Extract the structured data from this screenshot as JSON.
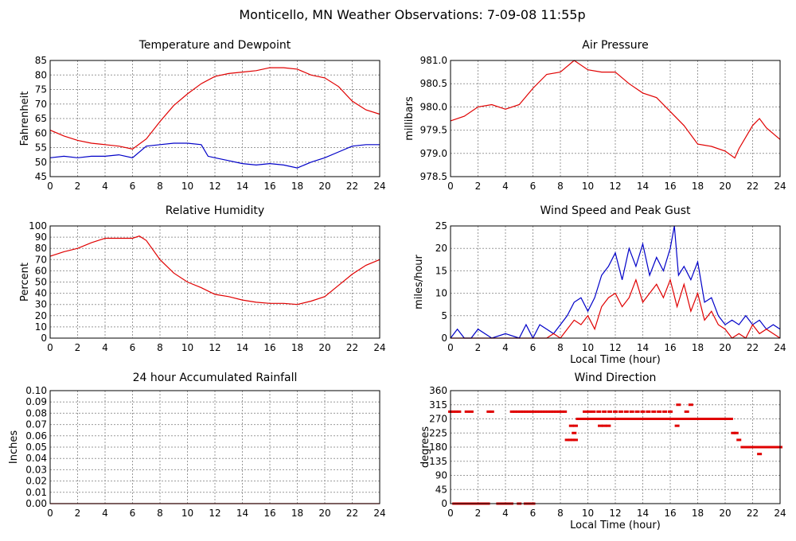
{
  "figure_title": "Monticello, MN Weather Observations: 7-09-08 11:55p",
  "colors": {
    "red": "#e00000",
    "blue": "#0000c8"
  },
  "chart_data": [
    {
      "id": "temp",
      "type": "line",
      "title": "Temperature and Dewpoint",
      "xlabel": "",
      "ylabel": "Fahrenheit",
      "xlim": [
        0,
        24
      ],
      "ylim": [
        45,
        85
      ],
      "xticks": [
        0,
        2,
        4,
        6,
        8,
        10,
        12,
        14,
        16,
        18,
        20,
        22,
        24
      ],
      "yticks": [
        45,
        50,
        55,
        60,
        65,
        70,
        75,
        80,
        85
      ],
      "ytick_labels": [
        "45",
        "50",
        "55",
        "60",
        "65",
        "70",
        "75",
        "80",
        "85"
      ],
      "grid": true,
      "series": [
        {
          "color": "red",
          "x": [
            0,
            1,
            2,
            3,
            4,
            5,
            6,
            7,
            8,
            9,
            10,
            11,
            12,
            13,
            14,
            15,
            16,
            17,
            18,
            19,
            20,
            21,
            22,
            23,
            24
          ],
          "y": [
            61,
            59,
            57.5,
            56.5,
            56,
            55.5,
            54.5,
            58,
            64,
            69.5,
            73.5,
            77,
            79.5,
            80.5,
            81,
            81.5,
            82.5,
            82.5,
            82,
            80,
            79,
            76,
            71,
            68,
            66.5
          ]
        },
        {
          "color": "blue",
          "x": [
            0,
            1,
            2,
            3,
            4,
            5,
            6,
            7,
            8,
            9,
            10,
            11,
            11.5,
            12,
            13,
            14,
            15,
            16,
            17,
            18,
            19,
            20,
            21,
            22,
            23,
            24
          ],
          "y": [
            51.5,
            52,
            51.5,
            52,
            52,
            52.5,
            51.5,
            55.5,
            56,
            56.5,
            56.5,
            56,
            52,
            51.5,
            50.5,
            49.5,
            49,
            49.5,
            49,
            48,
            50,
            51.5,
            53.5,
            55.5,
            56,
            56
          ]
        }
      ]
    },
    {
      "id": "pressure",
      "type": "line",
      "title": "Air Pressure",
      "xlabel": "",
      "ylabel": "millibars",
      "xlim": [
        0,
        24
      ],
      "ylim": [
        978.5,
        981.0
      ],
      "xticks": [
        0,
        2,
        4,
        6,
        8,
        10,
        12,
        14,
        16,
        18,
        20,
        22,
        24
      ],
      "yticks": [
        978.5,
        979.0,
        979.5,
        980.0,
        980.5,
        981.0
      ],
      "ytick_labels": [
        "978.5",
        "979.0",
        "979.5",
        "980.0",
        "980.5",
        "981.0"
      ],
      "grid": true,
      "series": [
        {
          "color": "red",
          "x": [
            0,
            1,
            2,
            3,
            4,
            5,
            6,
            7,
            8,
            9,
            10,
            11,
            12,
            13,
            14,
            15,
            16,
            17,
            18,
            19,
            20,
            20.7,
            21,
            22,
            22.5,
            23,
            24
          ],
          "y": [
            979.7,
            979.8,
            980.0,
            980.05,
            979.95,
            980.05,
            980.4,
            980.7,
            980.75,
            981.0,
            980.8,
            980.75,
            980.75,
            980.5,
            980.3,
            980.2,
            979.9,
            979.6,
            979.2,
            979.15,
            979.05,
            978.9,
            979.1,
            979.6,
            979.75,
            979.55,
            979.3
          ]
        }
      ]
    },
    {
      "id": "rh",
      "type": "line",
      "title": "Relative Humidity",
      "xlabel": "",
      "ylabel": "Percent",
      "xlim": [
        0,
        24
      ],
      "ylim": [
        0,
        100
      ],
      "xticks": [
        0,
        2,
        4,
        6,
        8,
        10,
        12,
        14,
        16,
        18,
        20,
        22,
        24
      ],
      "yticks": [
        0,
        10,
        20,
        30,
        40,
        50,
        60,
        70,
        80,
        90,
        100
      ],
      "ytick_labels": [
        "0",
        "10",
        "20",
        "30",
        "40",
        "50",
        "60",
        "70",
        "80",
        "90",
        "100"
      ],
      "grid": true,
      "series": [
        {
          "color": "red",
          "x": [
            0,
            1,
            2,
            3,
            4,
            5,
            6,
            6.5,
            7,
            8,
            9,
            10,
            11,
            12,
            13,
            14,
            15,
            16,
            17,
            18,
            19,
            20,
            21,
            22,
            23,
            24
          ],
          "y": [
            73,
            77,
            80,
            85,
            89,
            89,
            89,
            91,
            87,
            70,
            58,
            50,
            45,
            39,
            37,
            34,
            32,
            31,
            31,
            30,
            33,
            37,
            47,
            57,
            65,
            70
          ]
        }
      ]
    },
    {
      "id": "wind",
      "type": "line",
      "title": "Wind Speed and Peak Gust",
      "xlabel": "Local Time (hour)",
      "ylabel": "miles/hour",
      "xlim": [
        0,
        24
      ],
      "ylim": [
        0,
        25
      ],
      "xticks": [
        0,
        2,
        4,
        6,
        8,
        10,
        12,
        14,
        16,
        18,
        20,
        22,
        24
      ],
      "yticks": [
        0,
        5,
        10,
        15,
        20,
        25
      ],
      "ytick_labels": [
        "0",
        "5",
        "10",
        "15",
        "20",
        "25"
      ],
      "grid": true,
      "series": [
        {
          "color": "blue",
          "x": [
            0,
            0.5,
            1,
            1.5,
            2,
            3,
            4,
            5,
            5.5,
            6,
            6.5,
            7,
            7.5,
            8,
            8.5,
            9,
            9.5,
            10,
            10.5,
            11,
            11.5,
            12,
            12.5,
            13,
            13.5,
            14,
            14.5,
            15,
            15.5,
            16,
            16.3,
            16.6,
            17,
            17.5,
            18,
            18.5,
            19,
            19.5,
            20,
            20.5,
            21,
            21.5,
            22,
            22.5,
            23,
            23.5,
            24
          ],
          "y": [
            0,
            2,
            0,
            0,
            2,
            0,
            1,
            0,
            3,
            0,
            3,
            2,
            1,
            3,
            5,
            8,
            9,
            6,
            9,
            14,
            16,
            19,
            13,
            20,
            16,
            21,
            14,
            18,
            15,
            20,
            25,
            14,
            16,
            13,
            17,
            8,
            9,
            5,
            3,
            4,
            3,
            5,
            3,
            4,
            2,
            3,
            2
          ]
        },
        {
          "color": "red",
          "x": [
            0,
            6,
            6.5,
            7,
            7.5,
            8,
            8.5,
            9,
            9.5,
            10,
            10.5,
            11,
            11.5,
            12,
            12.5,
            13,
            13.5,
            14,
            14.5,
            15,
            15.5,
            16,
            16.5,
            17,
            17.5,
            18,
            18.5,
            19,
            19.5,
            20,
            20.5,
            21,
            21.5,
            22,
            22.5,
            23,
            23.5,
            24
          ],
          "y": [
            0,
            0,
            0,
            0,
            1,
            0,
            2,
            4,
            3,
            5,
            2,
            7,
            9,
            10,
            7,
            9,
            13,
            8,
            10,
            12,
            9,
            13,
            7,
            12,
            6,
            10,
            4,
            6,
            3,
            2,
            0,
            1,
            0,
            3,
            1,
            2,
            1,
            0
          ]
        }
      ]
    },
    {
      "id": "rain",
      "type": "line",
      "title": "24 hour Accumulated Rainfall",
      "xlabel": "",
      "ylabel": "Inches",
      "xlim": [
        0,
        24
      ],
      "ylim": [
        0,
        0.1
      ],
      "xticks": [
        0,
        2,
        4,
        6,
        8,
        10,
        12,
        14,
        16,
        18,
        20,
        22,
        24
      ],
      "yticks": [
        0,
        0.01,
        0.02,
        0.03,
        0.04,
        0.05,
        0.06,
        0.07,
        0.08,
        0.09,
        0.1
      ],
      "ytick_labels": [
        "0.00",
        "0.01",
        "0.02",
        "0.03",
        "0.04",
        "0.05",
        "0.06",
        "0.07",
        "0.08",
        "0.09",
        "0.10"
      ],
      "grid": true,
      "series": [
        {
          "color": "red",
          "x": [
            0,
            24
          ],
          "y": [
            0,
            0
          ]
        }
      ]
    },
    {
      "id": "winddir",
      "type": "scatter",
      "title": "Wind Direction",
      "xlabel": "Local Time (hour)",
      "ylabel": "degrees",
      "xlim": [
        0,
        24
      ],
      "ylim": [
        0,
        360
      ],
      "xticks": [
        0,
        2,
        4,
        6,
        8,
        10,
        12,
        14,
        16,
        18,
        20,
        22,
        24
      ],
      "yticks": [
        0,
        45,
        90,
        135,
        180,
        225,
        270,
        315,
        360
      ],
      "ytick_labels": [
        "0",
        "45",
        "90",
        "135",
        "180",
        "225",
        "270",
        "315",
        "360"
      ],
      "grid": true,
      "series": [
        {
          "color": "red",
          "x": [
            0,
            0.2,
            0.4,
            0.6,
            1.2,
            1.5,
            2.8,
            3.0,
            4.5,
            4.7,
            4.9,
            5.1,
            5.3,
            5.5,
            5.7,
            5.9,
            6.1,
            6.3,
            6.5,
            6.7,
            6.9,
            7.1,
            7.3,
            7.5,
            7.7,
            7.9,
            8.1,
            8.3,
            0.3,
            0.6,
            0.9,
            1.2,
            1.5,
            1.8,
            2.1,
            2.4,
            2.7,
            3.5,
            3.8,
            4.1,
            4.4,
            5.0,
            5.5,
            5.8,
            6.0,
            8.5,
            8.7,
            8.9,
            9.1,
            8.8,
            9.1,
            9.0,
            9.3,
            9.5,
            9.7,
            9.9,
            10.1,
            10.3,
            10.5,
            10.7,
            10.9,
            11.1,
            11.3,
            11.6,
            11.9,
            12.2,
            12.5,
            12.8,
            13.1,
            13.4,
            13.7,
            14.0,
            14.3,
            14.6,
            14.9,
            15.2,
            15.5,
            15.8,
            16.1,
            16.4,
            16.7,
            17.0,
            17.3,
            17.6,
            17.9,
            18.2,
            18.5,
            18.8,
            19.1,
            19.4,
            19.7,
            9.8,
            10.1,
            10.4,
            10.8,
            11.2,
            11.6,
            12.0,
            12.4,
            12.8,
            13.2,
            13.6,
            14.0,
            14.4,
            14.8,
            15.2,
            15.6,
            16.0,
            16.6,
            17.2,
            17.5,
            16.5,
            10.9,
            11.2,
            11.5,
            19.8,
            20.1,
            20.4,
            20.6,
            20.8,
            21.0,
            21.3,
            21.6,
            21.9,
            22.2,
            22.5,
            22.8,
            23.1,
            23.4,
            23.7,
            24.0,
            22.5
          ],
          "y": [
            293,
            293,
            293,
            293,
            293,
            293,
            293,
            293,
            293,
            293,
            293,
            293,
            293,
            293,
            293,
            293,
            293,
            293,
            293,
            293,
            293,
            293,
            293,
            293,
            293,
            293,
            293,
            293,
            0,
            0,
            0,
            0,
            0,
            0,
            0,
            0,
            0,
            0,
            0,
            0,
            0,
            0,
            0,
            0,
            0,
            203,
            203,
            203,
            203,
            248,
            248,
            225,
            270,
            270,
            270,
            270,
            270,
            270,
            270,
            270,
            270,
            270,
            270,
            270,
            270,
            270,
            270,
            270,
            270,
            270,
            270,
            270,
            270,
            270,
            270,
            270,
            270,
            270,
            270,
            270,
            270,
            270,
            270,
            270,
            270,
            270,
            270,
            270,
            270,
            270,
            270,
            293,
            293,
            293,
            293,
            293,
            293,
            293,
            293,
            293,
            293,
            293,
            293,
            293,
            293,
            293,
            293,
            293,
            315,
            293,
            315,
            248,
            248,
            248,
            248,
            270,
            270,
            270,
            225,
            225,
            203,
            180,
            180,
            180,
            180,
            180,
            180,
            180,
            180,
            180,
            180,
            158
          ]
        }
      ]
    }
  ]
}
